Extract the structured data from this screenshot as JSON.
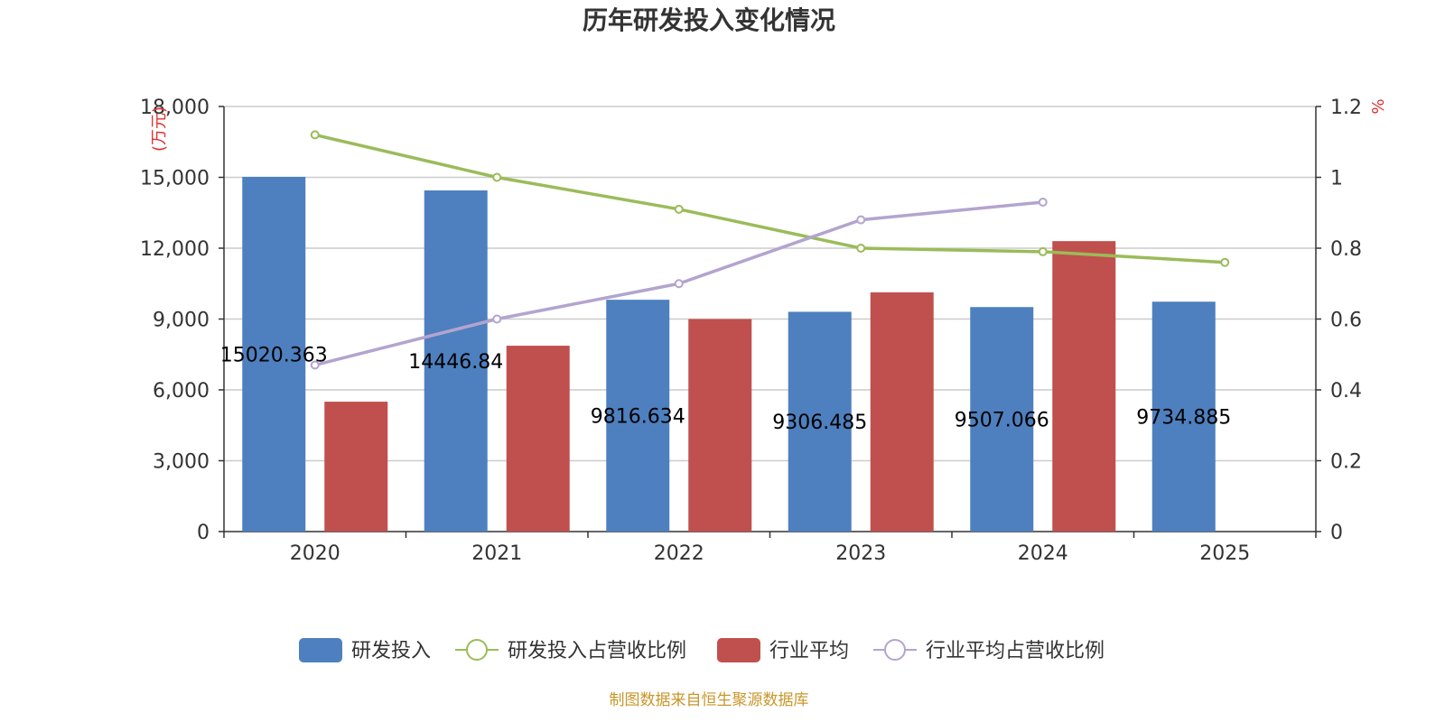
{
  "chart_data": {
    "type": "bar",
    "title": "历年研发投入变化情况",
    "categories": [
      "2020",
      "2021",
      "2022",
      "2023",
      "2024",
      "2025"
    ],
    "left_axis": {
      "unit_label": "(万元)",
      "ylim": [
        0,
        18000
      ],
      "ticks": [
        "0",
        "3,000",
        "6,000",
        "9,000",
        "12,000",
        "15,000",
        "18,000"
      ]
    },
    "right_axis": {
      "unit_label": "%",
      "ylim": [
        0,
        1.2
      ],
      "ticks": [
        "0",
        "0.2",
        "0.4",
        "0.6",
        "0.8",
        "1",
        "1.2"
      ]
    },
    "series": [
      {
        "name": "研发投入",
        "kind": "bar",
        "axis": "left",
        "color": "#4e80bf",
        "values": [
          15020.363,
          14446.84,
          9816.634,
          9306.485,
          9507.066,
          9734.885
        ],
        "labels": [
          "15020.363",
          "14446.84",
          "9816.634",
          "9306.485",
          "9507.066",
          "9734.885"
        ]
      },
      {
        "name": "研发投入占营收比例",
        "kind": "line",
        "axis": "right",
        "color": "#9bbb59",
        "values": [
          1.12,
          1.0,
          0.91,
          0.8,
          0.79,
          0.76
        ]
      },
      {
        "name": "行业平均",
        "kind": "bar",
        "axis": "left",
        "color": "#c0504d",
        "values": [
          5500,
          7870,
          9000,
          10130,
          12300,
          null
        ]
      },
      {
        "name": "行业平均占营收比例",
        "kind": "line",
        "axis": "right",
        "color": "#b3a4cf",
        "values": [
          0.47,
          0.6,
          0.7,
          0.88,
          0.93,
          null
        ]
      }
    ],
    "legend_position": "bottom",
    "grid": true
  },
  "footer": {
    "source": "制图数据来自恒生聚源数据库"
  }
}
